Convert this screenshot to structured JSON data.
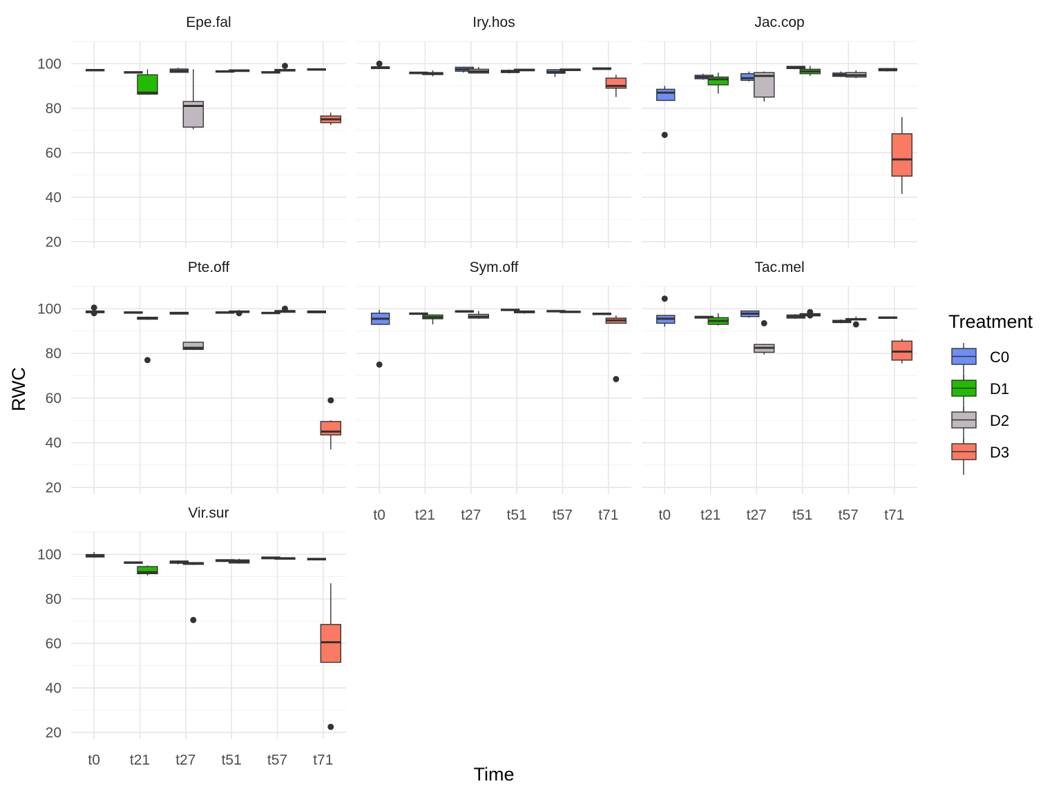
{
  "chart_data": {
    "type": "boxplot",
    "facet_wrap": true,
    "xlabel": "Time",
    "ylabel": "RWC",
    "categories": [
      "t0",
      "t21",
      "t27",
      "t51",
      "t57",
      "t71"
    ],
    "ylim": [
      17,
      110
    ],
    "yticks": [
      20,
      40,
      60,
      80,
      100
    ],
    "grid": true,
    "legend": {
      "title": "Treatment",
      "position": "right",
      "items": [
        {
          "name": "C0",
          "color": "#6f8ef5"
        },
        {
          "name": "D1",
          "color": "#22bb00"
        },
        {
          "name": "D2",
          "color": "#bfb8be"
        },
        {
          "name": "D3",
          "color": "#fa7a63"
        }
      ]
    },
    "panels": [
      {
        "name": "Epe.fal",
        "boxes": [
          {
            "time": "t0",
            "treatment": "C0",
            "min": 96.8,
            "q1": 96.8,
            "median": 97.1,
            "q3": 97.4,
            "max": 97.5,
            "outliers": []
          },
          {
            "time": "t21",
            "treatment": "C0",
            "min": 95.7,
            "q1": 95.8,
            "median": 96.1,
            "q3": 96.4,
            "max": 96.6,
            "outliers": []
          },
          {
            "time": "t21",
            "treatment": "D1",
            "min": 86,
            "q1": 86.3,
            "median": 87,
            "q3": 95,
            "max": 97.5,
            "outliers": []
          },
          {
            "time": "t27",
            "treatment": "C0",
            "min": 96,
            "q1": 96.1,
            "median": 96.8,
            "q3": 97.6,
            "max": 98.2,
            "outliers": []
          },
          {
            "time": "t27",
            "treatment": "D2",
            "min": 70.5,
            "q1": 71.5,
            "median": 81,
            "q3": 83,
            "max": 97.5,
            "outliers": []
          },
          {
            "time": "t51",
            "treatment": "C0",
            "min": 96.1,
            "q1": 96.2,
            "median": 96.5,
            "q3": 96.8,
            "max": 97,
            "outliers": []
          },
          {
            "time": "t51",
            "treatment": "D1",
            "min": 96.4,
            "q1": 96.5,
            "median": 96.9,
            "q3": 97.2,
            "max": 97.3,
            "outliers": []
          },
          {
            "time": "t57",
            "treatment": "C0",
            "min": 95.6,
            "q1": 95.8,
            "median": 96.1,
            "q3": 96.4,
            "max": 96.6,
            "outliers": []
          },
          {
            "time": "t57",
            "treatment": "D2",
            "min": 96.6,
            "q1": 96.7,
            "median": 97.1,
            "q3": 97.4,
            "max": 97.6,
            "outliers": [
              99
            ]
          },
          {
            "time": "t71",
            "treatment": "C0",
            "min": 97,
            "q1": 97.1,
            "median": 97.4,
            "q3": 97.7,
            "max": 97.8,
            "outliers": []
          },
          {
            "time": "t71",
            "treatment": "D3",
            "min": 72.5,
            "q1": 73.5,
            "median": 75,
            "q3": 76.5,
            "max": 78,
            "outliers": []
          }
        ]
      },
      {
        "name": "Iry.hos",
        "boxes": [
          {
            "time": "t0",
            "treatment": "C0",
            "min": 97.6,
            "q1": 97.8,
            "median": 98.2,
            "q3": 98.6,
            "max": 99,
            "outliers": [
              100
            ]
          },
          {
            "time": "t21",
            "treatment": "C0",
            "min": 95.3,
            "q1": 95.5,
            "median": 95.9,
            "q3": 96.2,
            "max": 96.4,
            "outliers": []
          },
          {
            "time": "t21",
            "treatment": "D1",
            "min": 94.3,
            "q1": 95.1,
            "median": 95.5,
            "q3": 96,
            "max": 97,
            "outliers": []
          },
          {
            "time": "t27",
            "treatment": "C0",
            "min": 96,
            "q1": 96.6,
            "median": 97.5,
            "q3": 98.4,
            "max": 98.6,
            "outliers": []
          },
          {
            "time": "t27",
            "treatment": "D2",
            "min": 95.6,
            "q1": 95.8,
            "median": 96.5,
            "q3": 97.5,
            "max": 98.5,
            "outliers": []
          },
          {
            "time": "t51",
            "treatment": "C0",
            "min": 95.6,
            "q1": 96,
            "median": 96.5,
            "q3": 97,
            "max": 97.4,
            "outliers": []
          },
          {
            "time": "t51",
            "treatment": "D1",
            "min": 96.6,
            "q1": 96.8,
            "median": 97.2,
            "q3": 97.5,
            "max": 97.7,
            "outliers": []
          },
          {
            "time": "t57",
            "treatment": "C0",
            "min": 94,
            "q1": 95.7,
            "median": 96.3,
            "q3": 97.3,
            "max": 97.6,
            "outliers": []
          },
          {
            "time": "t57",
            "treatment": "D2",
            "min": 96.7,
            "q1": 96.9,
            "median": 97.3,
            "q3": 97.6,
            "max": 97.8,
            "outliers": []
          },
          {
            "time": "t71",
            "treatment": "C0",
            "min": 97.2,
            "q1": 97.4,
            "median": 97.8,
            "q3": 98.1,
            "max": 98.3,
            "outliers": []
          },
          {
            "time": "t71",
            "treatment": "D3",
            "min": 85,
            "q1": 89,
            "median": 90,
            "q3": 93.5,
            "max": 95,
            "outliers": []
          }
        ]
      },
      {
        "name": "Jac.cop",
        "boxes": [
          {
            "time": "t0",
            "treatment": "C0",
            "min": 83.5,
            "q1": 83.5,
            "median": 87,
            "q3": 88.5,
            "max": 90,
            "outliers": [
              68
            ]
          },
          {
            "time": "t21",
            "treatment": "C0",
            "min": 92.8,
            "q1": 93.2,
            "median": 94,
            "q3": 94.8,
            "max": 95.5,
            "outliers": []
          },
          {
            "time": "t21",
            "treatment": "D1",
            "min": 86.5,
            "q1": 90.5,
            "median": 93,
            "q3": 94,
            "max": 96,
            "outliers": []
          },
          {
            "time": "t27",
            "treatment": "C0",
            "min": 92,
            "q1": 92.5,
            "median": 93.5,
            "q3": 95.5,
            "max": 96.5,
            "outliers": []
          },
          {
            "time": "t27",
            "treatment": "D2",
            "min": 83,
            "q1": 85,
            "median": 94.5,
            "q3": 96,
            "max": 96.5,
            "outliers": []
          },
          {
            "time": "t51",
            "treatment": "C0",
            "min": 97.5,
            "q1": 97.8,
            "median": 98.3,
            "q3": 98.8,
            "max": 99,
            "outliers": []
          },
          {
            "time": "t51",
            "treatment": "D1",
            "min": 94.5,
            "q1": 95.5,
            "median": 96.5,
            "q3": 97.5,
            "max": 99,
            "outliers": []
          },
          {
            "time": "t57",
            "treatment": "C0",
            "min": 94,
            "q1": 94.3,
            "median": 95,
            "q3": 95.8,
            "max": 96.5,
            "outliers": []
          },
          {
            "time": "t57",
            "treatment": "D2",
            "min": 93.5,
            "q1": 94,
            "median": 94.8,
            "q3": 96,
            "max": 97,
            "outliers": []
          },
          {
            "time": "t71",
            "treatment": "C0",
            "min": 96.5,
            "q1": 96.8,
            "median": 97.3,
            "q3": 97.8,
            "max": 98,
            "outliers": []
          },
          {
            "time": "t71",
            "treatment": "D3",
            "min": 41.5,
            "q1": 49.5,
            "median": 57,
            "q3": 68.5,
            "max": 76,
            "outliers": []
          }
        ]
      },
      {
        "name": "Pte.off",
        "boxes": [
          {
            "time": "t0",
            "treatment": "C0",
            "min": 98,
            "q1": 98.2,
            "median": 98.6,
            "q3": 99,
            "max": 99.2,
            "outliers": [
              100.5,
              98
            ]
          },
          {
            "time": "t21",
            "treatment": "C0",
            "min": 97.8,
            "q1": 98,
            "median": 98.3,
            "q3": 98.6,
            "max": 98.8,
            "outliers": []
          },
          {
            "time": "t21",
            "treatment": "D1",
            "min": 95,
            "q1": 95.3,
            "median": 95.8,
            "q3": 96.2,
            "max": 96.5,
            "outliers": [
              77
            ]
          },
          {
            "time": "t27",
            "treatment": "C0",
            "min": 97.4,
            "q1": 97.6,
            "median": 98,
            "q3": 98.4,
            "max": 98.6,
            "outliers": []
          },
          {
            "time": "t27",
            "treatment": "D2",
            "min": 81.5,
            "q1": 81.8,
            "median": 82.5,
            "q3": 85,
            "max": 85,
            "outliers": []
          },
          {
            "time": "t51",
            "treatment": "C0",
            "min": 97.8,
            "q1": 98,
            "median": 98.3,
            "q3": 98.6,
            "max": 98.8,
            "outliers": []
          },
          {
            "time": "t51",
            "treatment": "D1",
            "min": 98,
            "q1": 98.3,
            "median": 98.7,
            "q3": 99,
            "max": 99.2,
            "outliers": [
              98
            ]
          },
          {
            "time": "t57",
            "treatment": "C0",
            "min": 97.6,
            "q1": 97.8,
            "median": 98.1,
            "q3": 98.4,
            "max": 98.6,
            "outliers": []
          },
          {
            "time": "t57",
            "treatment": "D2",
            "min": 98.2,
            "q1": 98.4,
            "median": 98.8,
            "q3": 99.2,
            "max": 99.4,
            "outliers": [
              100
            ]
          },
          {
            "time": "t71",
            "treatment": "C0",
            "min": 98,
            "q1": 98.2,
            "median": 98.6,
            "q3": 99,
            "max": 99.1,
            "outliers": []
          },
          {
            "time": "t71",
            "treatment": "D3",
            "min": 37,
            "q1": 43.5,
            "median": 45,
            "q3": 49.5,
            "max": 50,
            "outliers": [
              59
            ]
          }
        ]
      },
      {
        "name": "Sym.off",
        "boxes": [
          {
            "time": "t0",
            "treatment": "C0",
            "min": 93,
            "q1": 93,
            "median": 95.5,
            "q3": 98,
            "max": 99.5,
            "outliers": [
              75
            ]
          },
          {
            "time": "t21",
            "treatment": "C0",
            "min": 97.3,
            "q1": 97.5,
            "median": 97.8,
            "q3": 98.1,
            "max": 98.3,
            "outliers": []
          },
          {
            "time": "t21",
            "treatment": "D1",
            "min": 93,
            "q1": 95.5,
            "median": 96.2,
            "q3": 97.2,
            "max": 97.5,
            "outliers": []
          },
          {
            "time": "t27",
            "treatment": "C0",
            "min": 98.3,
            "q1": 98.5,
            "median": 98.8,
            "q3": 99.1,
            "max": 99.3,
            "outliers": []
          },
          {
            "time": "t27",
            "treatment": "D2",
            "min": 95.5,
            "q1": 95.8,
            "median": 96.5,
            "q3": 97.5,
            "max": 99,
            "outliers": []
          },
          {
            "time": "t51",
            "treatment": "C0",
            "min": 99,
            "q1": 99.2,
            "median": 99.5,
            "q3": 99.8,
            "max": 100,
            "outliers": []
          },
          {
            "time": "t51",
            "treatment": "D1",
            "min": 97.8,
            "q1": 98.2,
            "median": 98.6,
            "q3": 99,
            "max": 99.2,
            "outliers": []
          },
          {
            "time": "t57",
            "treatment": "C0",
            "min": 98.4,
            "q1": 98.6,
            "median": 98.9,
            "q3": 99.2,
            "max": 99.4,
            "outliers": []
          },
          {
            "time": "t57",
            "treatment": "D2",
            "min": 98.1,
            "q1": 98.3,
            "median": 98.6,
            "q3": 98.9,
            "max": 99,
            "outliers": []
          },
          {
            "time": "t71",
            "treatment": "C0",
            "min": 97.2,
            "q1": 97.4,
            "median": 97.7,
            "q3": 98,
            "max": 98.2,
            "outliers": []
          },
          {
            "time": "t71",
            "treatment": "D3",
            "min": 93.5,
            "q1": 93.5,
            "median": 94.8,
            "q3": 95.8,
            "max": 97,
            "outliers": [
              68.5
            ]
          }
        ]
      },
      {
        "name": "Tac.mel",
        "boxes": [
          {
            "time": "t0",
            "treatment": "C0",
            "min": 92,
            "q1": 93.5,
            "median": 95.5,
            "q3": 97,
            "max": 97,
            "outliers": [
              104.5
            ]
          },
          {
            "time": "t21",
            "treatment": "C0",
            "min": 95.6,
            "q1": 95.8,
            "median": 96.2,
            "q3": 96.6,
            "max": 96.8,
            "outliers": []
          },
          {
            "time": "t21",
            "treatment": "D1",
            "min": 92.5,
            "q1": 93,
            "median": 94.5,
            "q3": 96,
            "max": 98,
            "outliers": []
          },
          {
            "time": "t27",
            "treatment": "C0",
            "min": 96,
            "q1": 96.5,
            "median": 97.8,
            "q3": 99,
            "max": 99.2,
            "outliers": []
          },
          {
            "time": "t27",
            "treatment": "D2",
            "min": 79.5,
            "q1": 80.5,
            "median": 82.5,
            "q3": 84,
            "max": 84.3,
            "outliers": [
              93.5
            ]
          },
          {
            "time": "t51",
            "treatment": "C0",
            "min": 95.5,
            "q1": 95.8,
            "median": 96.5,
            "q3": 97.2,
            "max": 97.6,
            "outliers": []
          },
          {
            "time": "t51",
            "treatment": "D1",
            "min": 96.5,
            "q1": 96.8,
            "median": 97.3,
            "q3": 97.8,
            "max": 98,
            "outliers": [
              98.5,
              97
            ]
          },
          {
            "time": "t57",
            "treatment": "C0",
            "min": 93.5,
            "q1": 93.8,
            "median": 94.3,
            "q3": 94.8,
            "max": 95.2,
            "outliers": []
          },
          {
            "time": "t57",
            "treatment": "D2",
            "min": 94.8,
            "q1": 95,
            "median": 95.3,
            "q3": 95.6,
            "max": 96.5,
            "outliers": [
              93
            ]
          },
          {
            "time": "t71",
            "treatment": "C0",
            "min": 95.5,
            "q1": 95.7,
            "median": 96,
            "q3": 96.3,
            "max": 96.5,
            "outliers": []
          },
          {
            "time": "t71",
            "treatment": "D3",
            "min": 75.5,
            "q1": 77,
            "median": 80.8,
            "q3": 85.5,
            "max": 86.5,
            "outliers": []
          }
        ]
      },
      {
        "name": "Vir.sur",
        "boxes": [
          {
            "time": "t0",
            "treatment": "C0",
            "min": 98.5,
            "q1": 98.8,
            "median": 99.3,
            "q3": 99.9,
            "max": 101,
            "outliers": []
          },
          {
            "time": "t21",
            "treatment": "C0",
            "min": 95.8,
            "q1": 96,
            "median": 96.3,
            "q3": 96.6,
            "max": 96.8,
            "outliers": []
          },
          {
            "time": "t21",
            "treatment": "D1",
            "min": 90.5,
            "q1": 91.3,
            "median": 92,
            "q3": 94.5,
            "max": 95,
            "outliers": []
          },
          {
            "time": "t27",
            "treatment": "C0",
            "min": 95.5,
            "q1": 96,
            "median": 96.5,
            "q3": 97,
            "max": 97.3,
            "outliers": []
          },
          {
            "time": "t27",
            "treatment": "D2",
            "min": 95.2,
            "q1": 95.5,
            "median": 95.9,
            "q3": 96.3,
            "max": 96.5,
            "outliers": [
              70.5
            ]
          },
          {
            "time": "t51",
            "treatment": "C0",
            "min": 96.5,
            "q1": 96.8,
            "median": 97.2,
            "q3": 97.6,
            "max": 97.8,
            "outliers": []
          },
          {
            "time": "t51",
            "treatment": "D1",
            "min": 95.8,
            "q1": 96.1,
            "median": 96.8,
            "q3": 97.5,
            "max": 98,
            "outliers": []
          },
          {
            "time": "t57",
            "treatment": "C0",
            "min": 97.8,
            "q1": 98,
            "median": 98.4,
            "q3": 98.8,
            "max": 99,
            "outliers": []
          },
          {
            "time": "t57",
            "treatment": "D2",
            "min": 97.6,
            "q1": 97.8,
            "median": 98.2,
            "q3": 98.5,
            "max": 98.7,
            "outliers": []
          },
          {
            "time": "t71",
            "treatment": "C0",
            "min": 97.3,
            "q1": 97.5,
            "median": 97.9,
            "q3": 98.2,
            "max": 98.4,
            "outliers": []
          },
          {
            "time": "t71",
            "treatment": "D3",
            "min": 51.5,
            "q1": 51.5,
            "median": 60.5,
            "q3": 68.5,
            "max": 87,
            "outliers": [
              22.5
            ]
          }
        ]
      }
    ]
  }
}
